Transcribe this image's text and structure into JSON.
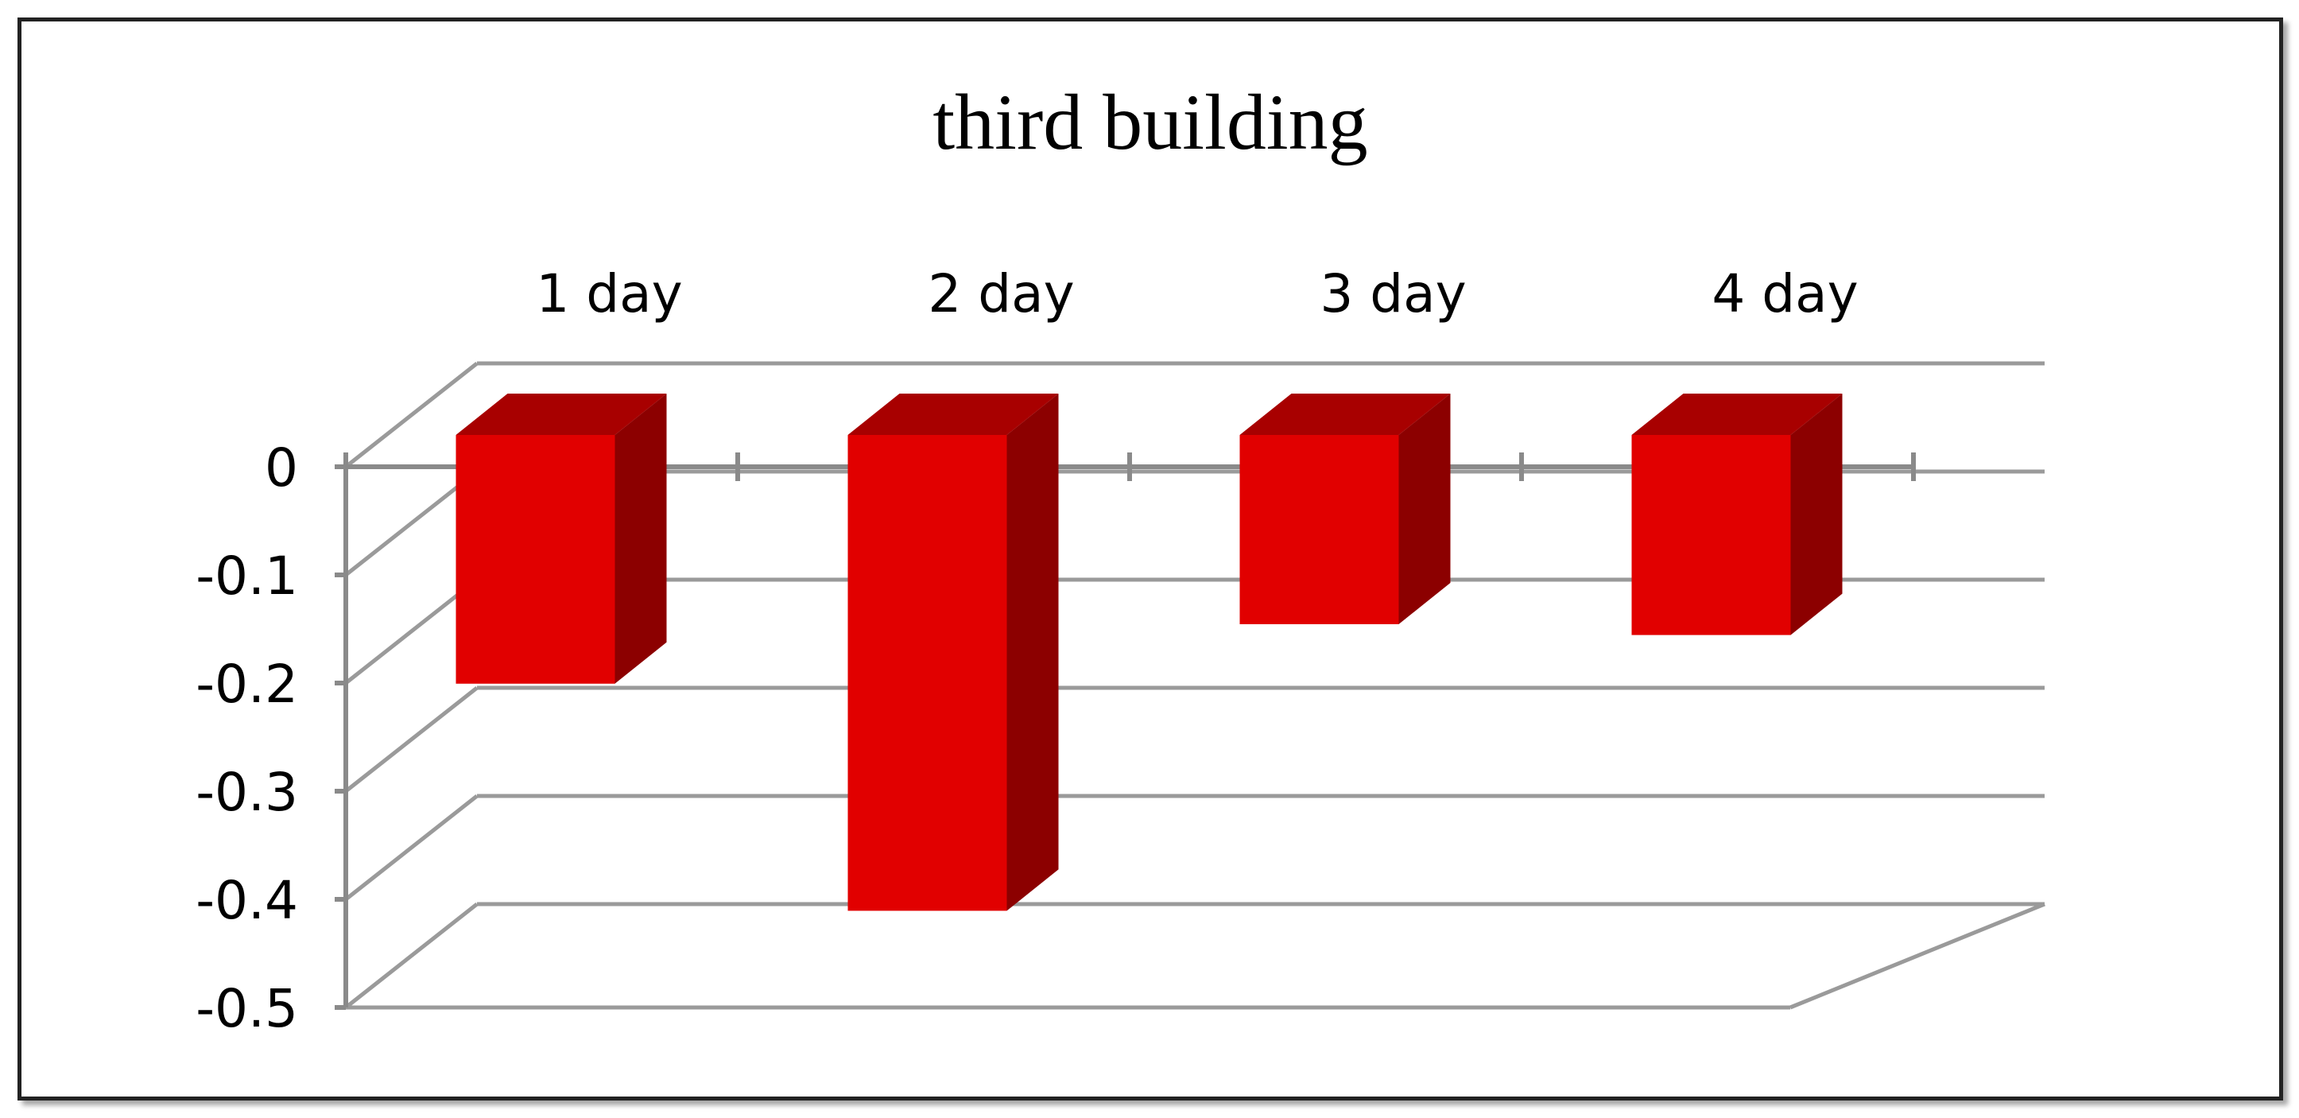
{
  "chart_data": {
    "type": "bar",
    "title": "third building",
    "categories": [
      "1 day",
      "2 day",
      "3 day",
      "4 day"
    ],
    "series": [
      {
        "values": [
          -0.23,
          -0.44,
          -0.175,
          -0.185
        ]
      }
    ],
    "ylim": [
      -0.5,
      0
    ],
    "yticks": [
      "0",
      "-0.1",
      "-0.2",
      "-0.3",
      "-0.4",
      "-0.5"
    ],
    "grid": true,
    "legend": "none",
    "style": "3d-column",
    "colors": {
      "bar_front": "#e10000",
      "bar_top": "#a80000",
      "bar_side": "#8c0000",
      "grid": "#9a9a9a",
      "frame": "#222222"
    }
  }
}
